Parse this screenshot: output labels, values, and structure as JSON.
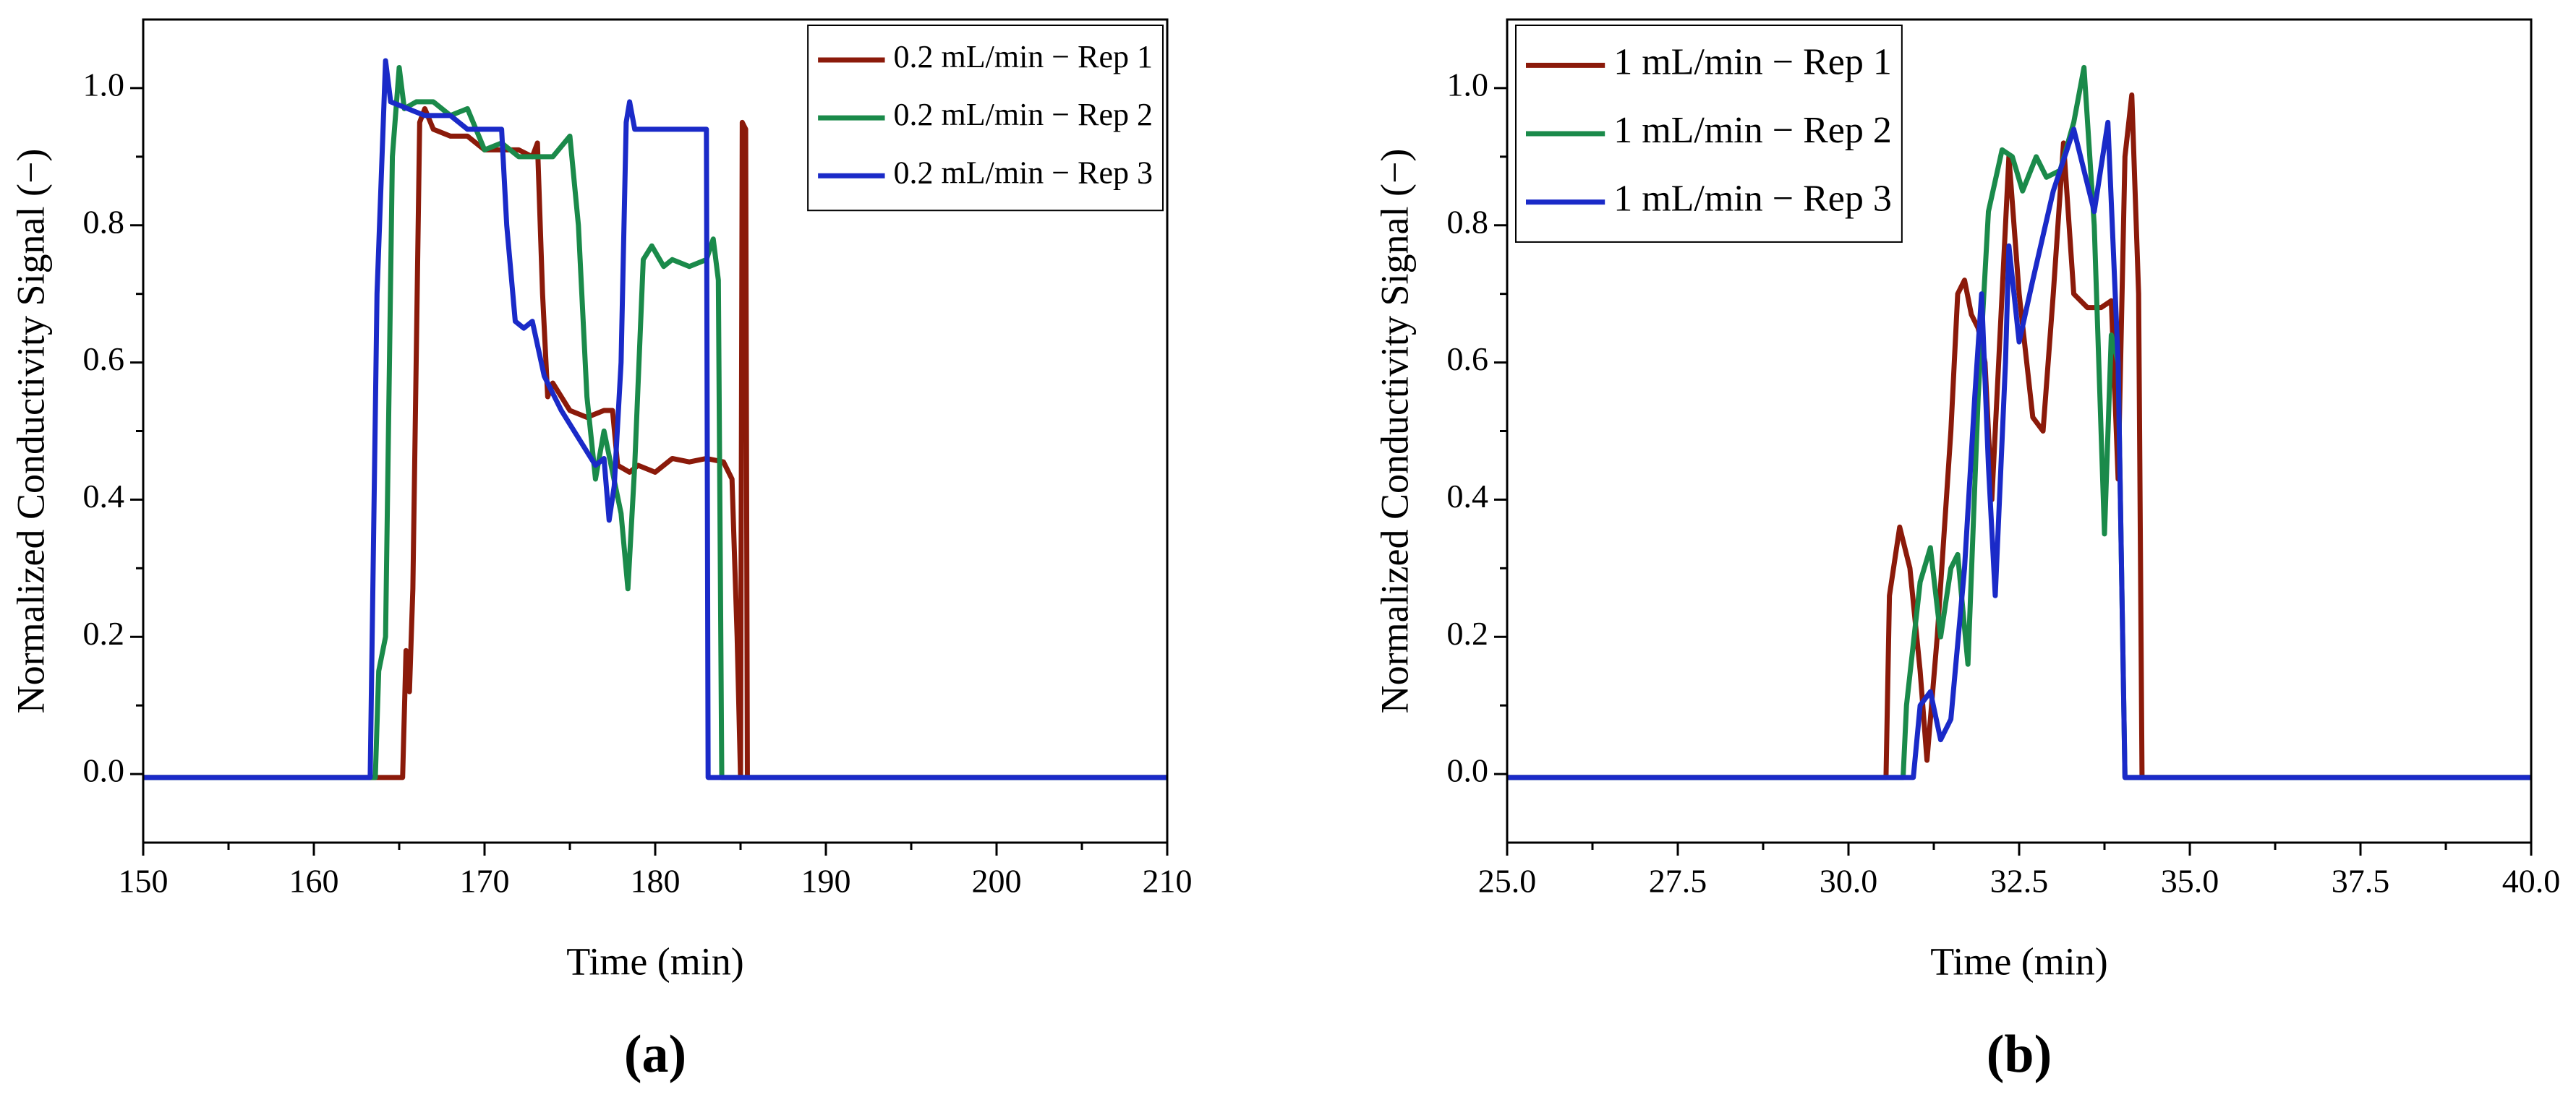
{
  "chart_data": [
    {
      "type": "line",
      "panel_label": "(a)",
      "x_label": "Time (min)",
      "y_label": "Normalized Conductivity Signal (−)",
      "xlim": [
        150,
        210
      ],
      "xticks": [
        150,
        160,
        170,
        180,
        190,
        200,
        210
      ],
      "ylim": [
        -0.1,
        1.1
      ],
      "yticks": [
        {
          "value": 0,
          "label": "0.0"
        },
        0.2,
        0.4,
        0.6,
        0.8,
        {
          "value": 1,
          "label": "1.0"
        }
      ],
      "legend": "upper right",
      "series": [
        {
          "name": "0.2 mL/min − Rep 1",
          "color": "#8b1a0a",
          "x": [
            150,
            165.2,
            165.4,
            165.6,
            165.8,
            166.2,
            166.5,
            167,
            168,
            169,
            170,
            171,
            172,
            172.8,
            173.1,
            173.4,
            173.7,
            174,
            175,
            176,
            177,
            177.5,
            177.8,
            178.5,
            179,
            180,
            181,
            182,
            183,
            184,
            184.5,
            184.8,
            185,
            185.1,
            185.3,
            185.4,
            210
          ],
          "values": [
            -0.005,
            -0.005,
            0.18,
            0.12,
            0.27,
            0.95,
            0.97,
            0.94,
            0.93,
            0.93,
            0.91,
            0.91,
            0.91,
            0.9,
            0.92,
            0.7,
            0.55,
            0.57,
            0.53,
            0.52,
            0.53,
            0.53,
            0.45,
            0.44,
            0.45,
            0.44,
            0.46,
            0.455,
            0.46,
            0.455,
            0.43,
            0.2,
            -0.005,
            0.95,
            0.94,
            -0.005,
            -0.005
          ]
        },
        {
          "name": "0.2 mL/min − Rep 2",
          "color": "#1a8a4a",
          "x": [
            150,
            163.6,
            163.8,
            164.2,
            164.6,
            165,
            165.3,
            166,
            167,
            168,
            169,
            170,
            171,
            172,
            173,
            174,
            175,
            175.5,
            176,
            176.5,
            177,
            178,
            178.4,
            178.8,
            179.3,
            179.8,
            180.5,
            181,
            182,
            183,
            183.4,
            183.7,
            183.9,
            210
          ],
          "values": [
            -0.005,
            -0.005,
            0.15,
            0.2,
            0.9,
            1.03,
            0.97,
            0.98,
            0.98,
            0.96,
            0.97,
            0.91,
            0.92,
            0.9,
            0.9,
            0.9,
            0.93,
            0.8,
            0.55,
            0.43,
            0.5,
            0.38,
            0.27,
            0.45,
            0.75,
            0.77,
            0.74,
            0.75,
            0.74,
            0.75,
            0.78,
            0.72,
            -0.005,
            -0.005
          ]
        },
        {
          "name": "0.2 mL/min − Rep 3",
          "color": "#1a2ac8",
          "x": [
            150,
            163.3,
            163.7,
            164.2,
            164.5,
            165.5,
            166.5,
            168,
            169,
            170,
            171,
            171.3,
            171.8,
            172.3,
            172.8,
            173.5,
            174.5,
            175.5,
            176.5,
            177,
            177.3,
            177.6,
            178,
            178.3,
            178.5,
            178.8,
            180,
            183,
            183.1,
            210
          ],
          "values": [
            -0.005,
            -0.005,
            0.7,
            1.04,
            0.98,
            0.97,
            0.96,
            0.96,
            0.94,
            0.94,
            0.94,
            0.8,
            0.66,
            0.65,
            0.66,
            0.58,
            0.53,
            0.49,
            0.45,
            0.46,
            0.37,
            0.42,
            0.6,
            0.95,
            0.98,
            0.94,
            0.94,
            0.94,
            -0.005,
            -0.005
          ]
        }
      ]
    },
    {
      "type": "line",
      "panel_label": "(b)",
      "x_label": "Time (min)",
      "y_label": "Normalized Conductivity Signal (−)",
      "xlim": [
        25,
        40
      ],
      "xticks": [
        {
          "value": 25,
          "label": "25.0"
        },
        27.5,
        {
          "value": 30,
          "label": "30.0"
        },
        32.5,
        {
          "value": 35,
          "label": "35.0"
        },
        37.5,
        {
          "value": 40,
          "label": "40.0"
        }
      ],
      "ylim": [
        -0.1,
        1.1
      ],
      "yticks": [
        {
          "value": 0,
          "label": "0.0"
        },
        0.2,
        0.4,
        0.6,
        0.8,
        {
          "value": 1,
          "label": "1.0"
        }
      ],
      "legend": "upper left",
      "series": [
        {
          "name": "1 mL/min − Rep 1",
          "color": "#8b1a0a",
          "x": [
            25,
            30.55,
            30.6,
            30.75,
            30.9,
            31.05,
            31.15,
            31.3,
            31.5,
            31.6,
            31.7,
            31.8,
            31.9,
            32.0,
            32.1,
            32.2,
            32.35,
            32.5,
            32.7,
            32.85,
            33.0,
            33.15,
            33.3,
            33.5,
            33.7,
            33.85,
            33.95,
            34.05,
            34.15,
            34.25,
            34.3,
            40
          ],
          "values": [
            -0.005,
            -0.005,
            0.26,
            0.36,
            0.3,
            0.15,
            0.02,
            0.2,
            0.5,
            0.7,
            0.72,
            0.67,
            0.65,
            0.6,
            0.4,
            0.6,
            0.9,
            0.7,
            0.52,
            0.5,
            0.7,
            0.92,
            0.7,
            0.68,
            0.68,
            0.69,
            0.43,
            0.9,
            0.99,
            0.7,
            -0.005,
            -0.005
          ]
        },
        {
          "name": "1 mL/min − Rep 2",
          "color": "#1a8a4a",
          "x": [
            25,
            30.8,
            30.85,
            31.05,
            31.2,
            31.35,
            31.5,
            31.6,
            31.75,
            31.9,
            32.05,
            32.25,
            32.4,
            32.55,
            32.75,
            32.9,
            33.1,
            33.3,
            33.45,
            33.6,
            33.75,
            33.85,
            33.95,
            34.05,
            40
          ],
          "values": [
            -0.005,
            -0.005,
            0.1,
            0.28,
            0.33,
            0.2,
            0.3,
            0.32,
            0.16,
            0.55,
            0.82,
            0.91,
            0.9,
            0.85,
            0.9,
            0.87,
            0.88,
            0.95,
            1.03,
            0.8,
            0.35,
            0.64,
            0.6,
            -0.005,
            -0.005
          ]
        },
        {
          "name": "1 mL/min − Rep 3",
          "color": "#1a2ac8",
          "x": [
            25,
            30.95,
            31.05,
            31.2,
            31.35,
            31.5,
            31.7,
            31.85,
            31.95,
            32.05,
            32.15,
            32.3,
            32.35,
            32.5,
            32.7,
            33.0,
            33.3,
            33.6,
            33.8,
            33.95,
            34.05,
            40
          ],
          "values": [
            -0.005,
            -0.005,
            0.1,
            0.12,
            0.05,
            0.08,
            0.3,
            0.55,
            0.7,
            0.45,
            0.26,
            0.6,
            0.77,
            0.63,
            0.72,
            0.85,
            0.94,
            0.82,
            0.95,
            0.6,
            -0.005,
            -0.005
          ]
        }
      ]
    }
  ]
}
